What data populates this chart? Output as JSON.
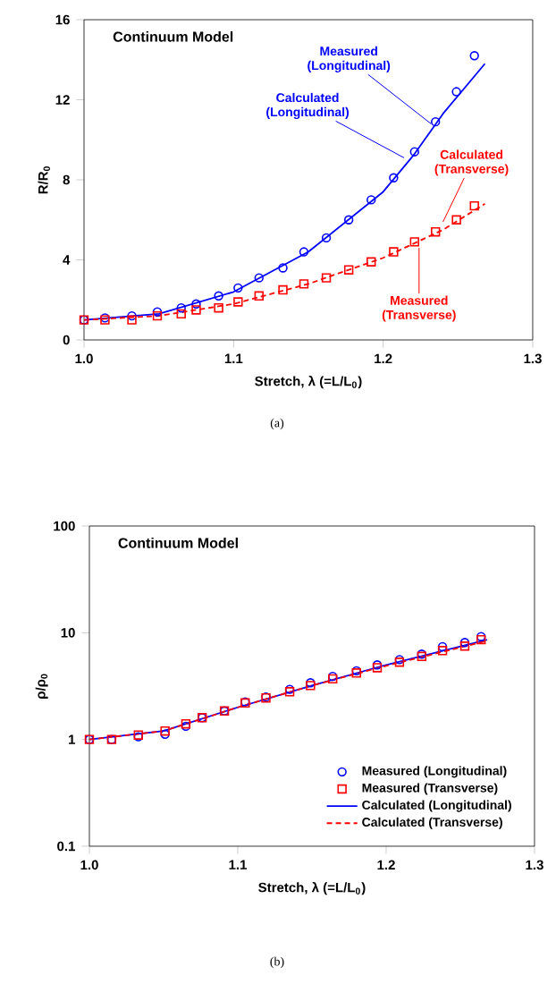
{
  "chart_data": [
    {
      "type": "scatter",
      "title": "Continuum Model",
      "xlabel": "Stretch, λ (=L/L$_{0}$)",
      "ylabel": "R/R$_{0}$",
      "xlim": [
        1.0,
        1.3
      ],
      "ylim": [
        0,
        16
      ],
      "xticks": [
        {
          "value": 1.0,
          "label": "1.0"
        },
        {
          "value": 1.1,
          "label": "1.1"
        },
        {
          "value": 1.2,
          "label": "1.2"
        },
        {
          "value": 1.3,
          "label": "1.3"
        }
      ],
      "yticks": [
        0,
        4,
        8,
        12,
        16
      ],
      "grid": false,
      "legend": false,
      "series": [
        {
          "marker": "circle",
          "color": "#0000ff",
          "x": [
            1.0,
            1.014,
            1.032,
            1.049,
            1.065,
            1.075,
            1.09,
            1.103,
            1.117,
            1.133,
            1.147,
            1.162,
            1.177,
            1.192,
            1.207,
            1.221,
            1.235,
            1.249,
            1.261
          ],
          "values": [
            1.0,
            1.1,
            1.2,
            1.4,
            1.6,
            1.8,
            2.2,
            2.6,
            3.1,
            3.6,
            4.4,
            5.1,
            6.0,
            7.0,
            8.1,
            9.4,
            10.9,
            12.4,
            14.2
          ]
        },
        {
          "marker": "square",
          "color": "#ff0000",
          "x": [
            1.0,
            1.014,
            1.032,
            1.049,
            1.065,
            1.075,
            1.09,
            1.103,
            1.117,
            1.133,
            1.147,
            1.162,
            1.177,
            1.192,
            1.207,
            1.221,
            1.235,
            1.249,
            1.261
          ],
          "values": [
            1.0,
            1.0,
            1.0,
            1.2,
            1.3,
            1.5,
            1.6,
            1.9,
            2.2,
            2.5,
            2.8,
            3.1,
            3.5,
            3.9,
            4.4,
            4.9,
            5.4,
            6.0,
            6.7
          ]
        },
        {
          "type": "line",
          "line_style": "solid",
          "color": "#0000ff",
          "x": [
            1.0,
            1.05,
            1.1,
            1.15,
            1.2,
            1.22,
            1.24,
            1.268
          ],
          "values": [
            1.0,
            1.3,
            2.4,
            4.4,
            7.4,
            9.2,
            11.3,
            13.8
          ]
        },
        {
          "type": "line",
          "line_style": "dashed",
          "color": "#ff0000",
          "x": [
            1.0,
            1.05,
            1.1,
            1.15,
            1.2,
            1.24,
            1.268
          ],
          "values": [
            1.0,
            1.2,
            1.8,
            2.8,
            4.1,
            5.5,
            6.8
          ]
        }
      ],
      "annotations": [
        {
          "text": "Measured (Longitudinal)",
          "x": 1.232,
          "y": 10.8
        },
        {
          "text": "Calculated (Longitudinal)",
          "x": 1.214,
          "y": 9.1
        },
        {
          "text": "Calculated (Transverse)",
          "x": 1.24,
          "y": 5.9
        },
        {
          "text": "Measured (Transverse)",
          "x": 1.224,
          "y": 4.6
        },
        "(a)"
      ]
    },
    {
      "type": "scatter",
      "title": "Continuum Model",
      "xlabel": "Stretch, λ (=L/L$_{0}$)",
      "ylabel": "ρ/ρ$_{0}$",
      "xlim": [
        1.0,
        1.3
      ],
      "ylim": [
        0.1,
        100
      ],
      "log": "y",
      "xticks": [
        {
          "value": 1.0,
          "label": "1.0"
        },
        {
          "value": 1.1,
          "label": "1.1"
        },
        {
          "value": 1.2,
          "label": "1.2"
        },
        {
          "value": 1.3,
          "label": "1.3"
        }
      ],
      "yticks": [
        0.1,
        1,
        10,
        100
      ],
      "grid": false,
      "legend": "bottom right",
      "series": [
        {
          "name": "Measured (Longitudinal)",
          "marker": "circle",
          "color": "#0000ff",
          "x": [
            1.0,
            1.015,
            1.033,
            1.051,
            1.065,
            1.076,
            1.091,
            1.105,
            1.119,
            1.135,
            1.149,
            1.164,
            1.18,
            1.194,
            1.209,
            1.224,
            1.238,
            1.253,
            1.264
          ],
          "values": [
            1.0,
            1.0,
            1.06,
            1.12,
            1.33,
            1.6,
            1.85,
            2.25,
            2.5,
            2.95,
            3.4,
            3.9,
            4.4,
            5.0,
            5.6,
            6.3,
            7.4,
            8.1,
            9.2
          ]
        },
        {
          "name": "Measured (Transverse)",
          "marker": "square",
          "color": "#ff0000",
          "x": [
            1.0,
            1.015,
            1.033,
            1.051,
            1.065,
            1.076,
            1.091,
            1.105,
            1.119,
            1.135,
            1.149,
            1.164,
            1.18,
            1.194,
            1.209,
            1.224,
            1.238,
            1.253,
            1.264
          ],
          "values": [
            1.0,
            1.0,
            1.1,
            1.2,
            1.4,
            1.6,
            1.85,
            2.2,
            2.45,
            2.8,
            3.2,
            3.7,
            4.2,
            4.7,
            5.3,
            6.0,
            6.8,
            7.5,
            8.6
          ]
        },
        {
          "type": "line",
          "name": "Calculated (Longitudinal)",
          "line_style": "solid",
          "color": "#0000ff",
          "x": [
            1.0,
            1.05,
            1.1,
            1.15,
            1.2,
            1.268
          ],
          "values": [
            1.0,
            1.2,
            2.0,
            3.2,
            5.0,
            8.6
          ]
        },
        {
          "type": "line",
          "name": "Calculated (Transverse)",
          "line_style": "dashed",
          "color": "#ff0000",
          "x": [
            1.0,
            1.05,
            1.1,
            1.15,
            1.2,
            1.268
          ],
          "values": [
            1.0,
            1.2,
            2.0,
            3.2,
            4.9,
            8.4
          ]
        }
      ],
      "annotations": [
        "(b)"
      ]
    }
  ]
}
